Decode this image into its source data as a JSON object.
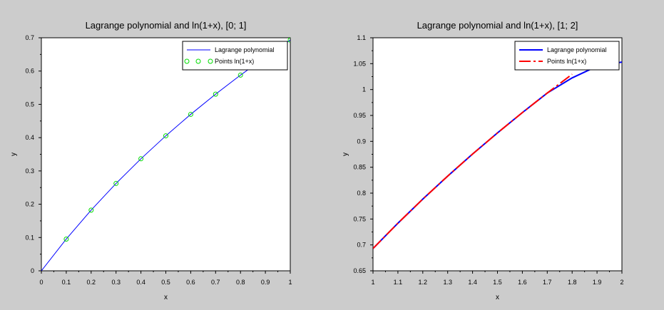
{
  "chart_data": [
    {
      "type": "line",
      "title": "Lagrange polynomial and ln(1+x), [0; 1]",
      "xlabel": "x",
      "ylabel": "y",
      "xlim": [
        0,
        1
      ],
      "ylim": [
        0,
        0.7
      ],
      "xticks": [
        "0",
        "0.1",
        "0.2",
        "0.3",
        "0.4",
        "0.5",
        "0.6",
        "0.7",
        "0.8",
        "0.9",
        "1"
      ],
      "yticks": [
        "0",
        "0.1",
        "0.2",
        "0.3",
        "0.4",
        "0.5",
        "0.6",
        "0.7"
      ],
      "legend_position": "top-right",
      "series": [
        {
          "name": "Lagrange polynomial",
          "style": "line",
          "color": "#0000ff",
          "x": [
            0,
            0.1,
            0.2,
            0.3,
            0.4,
            0.5,
            0.6,
            0.7,
            0.8,
            0.9,
            1.0
          ],
          "y": [
            0,
            0.0953,
            0.1823,
            0.2624,
            0.3365,
            0.4055,
            0.47,
            0.5306,
            0.5878,
            0.6419,
            0.6931
          ]
        },
        {
          "name": "Points ln(1+x)",
          "style": "markers",
          "color": "#00dd00",
          "x": [
            0.1,
            0.2,
            0.3,
            0.4,
            0.5,
            0.6,
            0.7,
            0.8,
            1.0
          ],
          "y": [
            0.0953,
            0.1823,
            0.2624,
            0.3365,
            0.4055,
            0.47,
            0.5306,
            0.5878,
            0.6931
          ]
        }
      ]
    },
    {
      "type": "line",
      "title": "Lagrange polynomial and ln(1+x), [1; 2]",
      "xlabel": "x",
      "ylabel": "y",
      "xlim": [
        1,
        2
      ],
      "ylim": [
        0.65,
        1.1
      ],
      "xticks": [
        "1",
        "1.1",
        "1.2",
        "1.3",
        "1.4",
        "1.5",
        "1.6",
        "1.7",
        "1.8",
        "1.9",
        "2"
      ],
      "yticks": [
        "0.65",
        "0.7",
        "0.75",
        "0.8",
        "0.85",
        "0.9",
        "0.95",
        "1",
        "1.05",
        "1.1"
      ],
      "legend_position": "top-right",
      "series": [
        {
          "name": "Lagrange polynomial",
          "style": "line",
          "color": "#0000ff",
          "x": [
            1.0,
            1.1,
            1.2,
            1.3,
            1.4,
            1.5,
            1.6,
            1.7,
            1.8,
            1.9,
            2.0
          ],
          "y": [
            0.6931,
            0.7419,
            0.7885,
            0.8329,
            0.8755,
            0.9163,
            0.9555,
            0.9933,
            1.0225,
            1.045,
            1.053
          ]
        },
        {
          "name": "Points ln(1+x)",
          "style": "dashed",
          "color": "#ff0000",
          "x": [
            1.0,
            1.1,
            1.2,
            1.3,
            1.4,
            1.5,
            1.6,
            1.7,
            1.8
          ],
          "y": [
            0.6931,
            0.7419,
            0.7885,
            0.8329,
            0.8755,
            0.9163,
            0.9555,
            0.9933,
            1.0296
          ]
        }
      ]
    }
  ]
}
